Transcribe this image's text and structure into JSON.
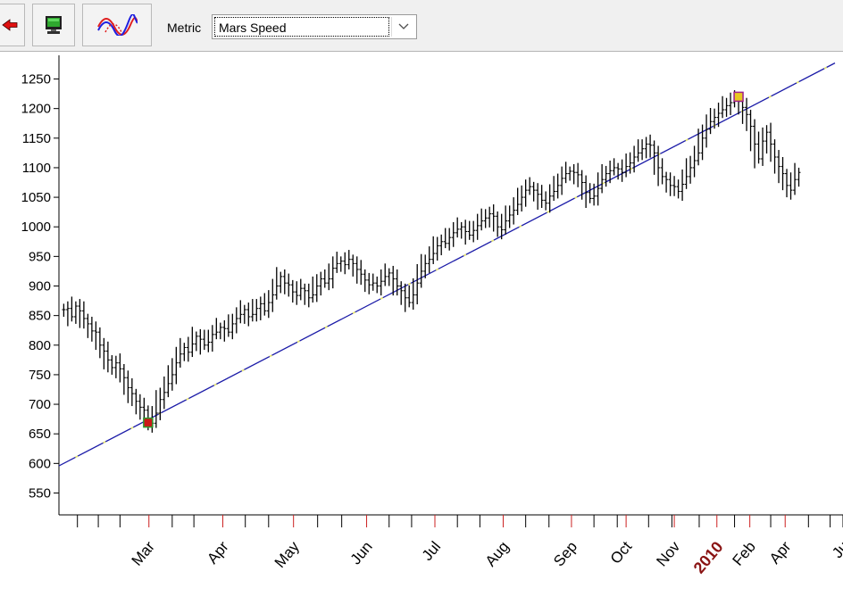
{
  "toolbar": {
    "buttons": [
      {
        "name": "back-button",
        "icon": "red-arrow-left-icon"
      },
      {
        "name": "display-button",
        "icon": "monitor-icon"
      },
      {
        "name": "wave-overlay-button",
        "icon": "sine-wave-icon"
      }
    ],
    "metric_label": "Metric",
    "metric_select": {
      "value": "Mars Speed"
    }
  },
  "chart_data": {
    "type": "line",
    "series": [
      {
        "style": "ohlc-bars",
        "color": "#000000",
        "points": [
          [
            0.0,
            860
          ],
          [
            0.5,
            862
          ],
          [
            1.0,
            848
          ],
          [
            1.5,
            866
          ],
          [
            2.0,
            858
          ],
          [
            2.5,
            845
          ],
          [
            3.0,
            836
          ],
          [
            3.5,
            824
          ],
          [
            4.0,
            822
          ],
          [
            4.5,
            800
          ],
          [
            5.0,
            790
          ],
          [
            5.5,
            775
          ],
          [
            6.0,
            762
          ],
          [
            6.5,
            770
          ],
          [
            7.0,
            760
          ],
          [
            7.5,
            745
          ],
          [
            8.0,
            728
          ],
          [
            8.5,
            718
          ],
          [
            9.0,
            705
          ],
          [
            9.5,
            695
          ],
          [
            10.0,
            690
          ],
          [
            10.5,
            672
          ],
          [
            11.0,
            668
          ],
          [
            11.5,
            685
          ],
          [
            12.0,
            708
          ],
          [
            12.5,
            720
          ],
          [
            13.0,
            735
          ],
          [
            13.5,
            750
          ],
          [
            14.0,
            770
          ],
          [
            14.5,
            785
          ],
          [
            15.0,
            796
          ],
          [
            15.5,
            788
          ],
          [
            16.0,
            802
          ],
          [
            16.5,
            815
          ],
          [
            17.0,
            810
          ],
          [
            17.5,
            800
          ],
          [
            18.0,
            805
          ],
          [
            18.5,
            818
          ],
          [
            19.0,
            822
          ],
          [
            19.5,
            830
          ],
          [
            20.0,
            828
          ],
          [
            20.5,
            822
          ],
          [
            21.0,
            836
          ],
          [
            21.5,
            845
          ],
          [
            22.0,
            852
          ],
          [
            22.5,
            860
          ],
          [
            23.0,
            848
          ],
          [
            23.5,
            852
          ],
          [
            24.0,
            862
          ],
          [
            24.5,
            870
          ],
          [
            25.0,
            858
          ],
          [
            25.5,
            872
          ],
          [
            26.0,
            885
          ],
          [
            26.5,
            900
          ],
          [
            27.0,
            916
          ],
          [
            27.5,
            905
          ],
          [
            28.0,
            902
          ],
          [
            28.5,
            890
          ],
          [
            29.0,
            884
          ],
          [
            29.5,
            896
          ],
          [
            30.0,
            892
          ],
          [
            30.5,
            880
          ],
          [
            31.0,
            885
          ],
          [
            31.5,
            900
          ],
          [
            32.0,
            912
          ],
          [
            32.5,
            905
          ],
          [
            33.0,
            912
          ],
          [
            33.5,
            930
          ],
          [
            34.0,
            938
          ],
          [
            34.5,
            942
          ],
          [
            35.0,
            936
          ],
          [
            35.5,
            945
          ],
          [
            36.0,
            938
          ],
          [
            36.5,
            928
          ],
          [
            37.0,
            920
          ],
          [
            37.5,
            910
          ],
          [
            38.0,
            902
          ],
          [
            38.5,
            905
          ],
          [
            39.0,
            900
          ],
          [
            39.5,
            908
          ],
          [
            40.0,
            916
          ],
          [
            40.5,
            922
          ],
          [
            41.0,
            912
          ],
          [
            41.5,
            900
          ],
          [
            42.0,
            892
          ],
          [
            42.5,
            880
          ],
          [
            43.0,
            872
          ],
          [
            43.5,
            885
          ],
          [
            44.0,
            905
          ],
          [
            44.5,
            925
          ],
          [
            45.0,
            938
          ],
          [
            45.5,
            945
          ],
          [
            46.0,
            955
          ],
          [
            46.5,
            968
          ],
          [
            47.0,
            975
          ],
          [
            47.5,
            972
          ],
          [
            48.0,
            982
          ],
          [
            48.5,
            990
          ],
          [
            49.0,
            996
          ],
          [
            49.5,
            1000
          ],
          [
            50.0,
            992
          ],
          [
            50.5,
            986
          ],
          [
            51.0,
            994
          ],
          [
            51.5,
            1002
          ],
          [
            52.0,
            1010
          ],
          [
            52.5,
            1015
          ],
          [
            53.0,
            1022
          ],
          [
            53.5,
            1018
          ],
          [
            54.0,
            1000
          ],
          [
            54.5,
            995
          ],
          [
            55.0,
            1010
          ],
          [
            55.5,
            1020
          ],
          [
            56.0,
            1028
          ],
          [
            56.5,
            1038
          ],
          [
            57.0,
            1050
          ],
          [
            57.5,
            1062
          ],
          [
            58.0,
            1068
          ],
          [
            58.5,
            1062
          ],
          [
            59.0,
            1055
          ],
          [
            59.5,
            1045
          ],
          [
            60.0,
            1040
          ],
          [
            60.5,
            1052
          ],
          [
            61.0,
            1060
          ],
          [
            61.5,
            1070
          ],
          [
            62.0,
            1082
          ],
          [
            62.5,
            1090
          ],
          [
            63.0,
            1094
          ],
          [
            63.5,
            1092
          ],
          [
            64.0,
            1088
          ],
          [
            64.5,
            1075
          ],
          [
            65.0,
            1058
          ],
          [
            65.5,
            1048
          ],
          [
            66.0,
            1052
          ],
          [
            66.5,
            1065
          ],
          [
            67.0,
            1080
          ],
          [
            67.5,
            1090
          ],
          [
            68.0,
            1095
          ],
          [
            68.5,
            1100
          ],
          [
            69.0,
            1098
          ],
          [
            69.5,
            1092
          ],
          [
            70.0,
            1102
          ],
          [
            70.5,
            1108
          ],
          [
            71.0,
            1118
          ],
          [
            71.5,
            1125
          ],
          [
            72.0,
            1132
          ],
          [
            72.5,
            1140
          ],
          [
            73.0,
            1138
          ],
          [
            73.5,
            1125
          ],
          [
            74.0,
            1100
          ],
          [
            74.5,
            1085
          ],
          [
            75.0,
            1080
          ],
          [
            75.5,
            1070
          ],
          [
            76.0,
            1068
          ],
          [
            76.5,
            1060
          ],
          [
            77.0,
            1072
          ],
          [
            77.5,
            1085
          ],
          [
            78.0,
            1100
          ],
          [
            78.5,
            1112
          ],
          [
            79.0,
            1125
          ],
          [
            79.5,
            1150
          ],
          [
            80.0,
            1165
          ],
          [
            80.5,
            1178
          ],
          [
            81.0,
            1185
          ],
          [
            81.5,
            1192
          ],
          [
            82.0,
            1198
          ],
          [
            82.5,
            1205
          ],
          [
            83.0,
            1210
          ],
          [
            83.5,
            1215
          ],
          [
            84.0,
            1212
          ],
          [
            84.5,
            1202
          ],
          [
            85.0,
            1190
          ],
          [
            85.5,
            1170
          ],
          [
            86.0,
            1140
          ],
          [
            86.5,
            1115
          ],
          [
            87.0,
            1145
          ],
          [
            87.5,
            1160
          ],
          [
            88.0,
            1140
          ],
          [
            88.5,
            1118
          ],
          [
            89.0,
            1102
          ],
          [
            89.5,
            1090
          ],
          [
            90.0,
            1070
          ],
          [
            90.5,
            1062
          ],
          [
            91.0,
            1080
          ],
          [
            91.5,
            1092
          ]
        ]
      },
      {
        "name": "Mars Speed",
        "style": "line",
        "color": "#1c1ca8",
        "dash_color": "#e8e86a",
        "points": [
          [
            -2,
            586
          ],
          [
            96,
            1277
          ]
        ]
      }
    ],
    "markers": [
      {
        "label": "low",
        "x": 10.5,
        "y": 669,
        "fill": "#cc1818",
        "stroke": "#2c9a2c"
      },
      {
        "label": "high",
        "x": 84.0,
        "y": 1220,
        "fill": "#e8c820",
        "stroke": "#a0208c"
      }
    ],
    "y_ticks": [
      550,
      600,
      650,
      700,
      750,
      800,
      850,
      900,
      950,
      1000,
      1050,
      1100,
      1150,
      1200,
      1250
    ],
    "ylim": [
      513,
      1287
    ],
    "xlim": [
      -0.6,
      97
    ],
    "x_ticks": [
      {
        "x": 1.7
      },
      {
        "x": 4.3
      },
      {
        "x": 7.0
      },
      {
        "x": 10.6,
        "major": true,
        "label": "Mar"
      },
      {
        "x": 13.5
      },
      {
        "x": 16.2
      },
      {
        "x": 19.8,
        "major": true,
        "label": "Apr"
      },
      {
        "x": 22.6
      },
      {
        "x": 25.5
      },
      {
        "x": 28.6,
        "major": true,
        "label": "May"
      },
      {
        "x": 31.6
      },
      {
        "x": 34.6
      },
      {
        "x": 37.7,
        "major": true,
        "label": "Jun"
      },
      {
        "x": 40.5
      },
      {
        "x": 43.3
      },
      {
        "x": 46.2,
        "major": true,
        "label": "Jul"
      },
      {
        "x": 49.0
      },
      {
        "x": 51.8
      },
      {
        "x": 54.7,
        "major": true,
        "label": "Aug"
      },
      {
        "x": 57.5
      },
      {
        "x": 60.4
      },
      {
        "x": 63.2,
        "major": true,
        "label": "Sep"
      },
      {
        "x": 66.0
      },
      {
        "x": 68.9
      },
      {
        "x": 70.0,
        "major": true,
        "label": "Oct"
      },
      {
        "x": 72.8
      },
      {
        "x": 75.7
      },
      {
        "x": 76.0,
        "major": true,
        "label": "Nov"
      },
      {
        "x": 79.1
      },
      {
        "x": 81.3,
        "major": true,
        "label": "2010",
        "year": true
      },
      {
        "x": 83.5
      },
      {
        "x": 85.4,
        "major": true,
        "label": "Feb"
      },
      {
        "x": 88.0
      },
      {
        "x": 89.8,
        "major": true,
        "label": "Apr"
      },
      {
        "x": 92.7
      },
      {
        "x": 95.4
      },
      {
        "x": 97.0,
        "label": "Ju"
      }
    ],
    "grid": false
  }
}
